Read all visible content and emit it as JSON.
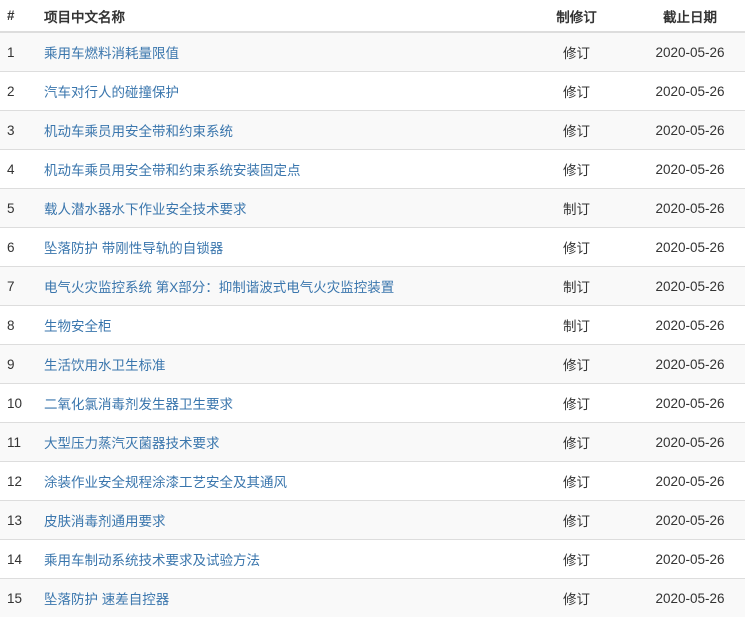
{
  "headers": {
    "num": "#",
    "name": "项目中文名称",
    "type": "制修订",
    "deadline": "截止日期"
  },
  "rows": [
    {
      "num": "1",
      "name": "乘用车燃料消耗量限值",
      "type": "修订",
      "deadline": "2020-05-26"
    },
    {
      "num": "2",
      "name": "汽车对行人的碰撞保护",
      "type": "修订",
      "deadline": "2020-05-26"
    },
    {
      "num": "3",
      "name": "机动车乘员用安全带和约束系统",
      "type": "修订",
      "deadline": "2020-05-26"
    },
    {
      "num": "4",
      "name": "机动车乘员用安全带和约束系统安装固定点",
      "type": "修订",
      "deadline": "2020-05-26"
    },
    {
      "num": "5",
      "name": "载人潜水器水下作业安全技术要求",
      "type": "制订",
      "deadline": "2020-05-26"
    },
    {
      "num": "6",
      "name": "坠落防护 带刚性导轨的自锁器",
      "type": "修订",
      "deadline": "2020-05-26"
    },
    {
      "num": "7",
      "name": "电气火灾监控系统 第X部分：抑制谐波式电气火灾监控装置",
      "type": "制订",
      "deadline": "2020-05-26"
    },
    {
      "num": "8",
      "name": "生物安全柜",
      "type": "制订",
      "deadline": "2020-05-26"
    },
    {
      "num": "9",
      "name": "生活饮用水卫生标准",
      "type": "修订",
      "deadline": "2020-05-26"
    },
    {
      "num": "10",
      "name": "二氧化氯消毒剂发生器卫生要求",
      "type": "修订",
      "deadline": "2020-05-26"
    },
    {
      "num": "11",
      "name": "大型压力蒸汽灭菌器技术要求",
      "type": "修订",
      "deadline": "2020-05-26"
    },
    {
      "num": "12",
      "name": "涂装作业安全规程涂漆工艺安全及其通风",
      "type": "修订",
      "deadline": "2020-05-26"
    },
    {
      "num": "13",
      "name": "皮肤消毒剂通用要求",
      "type": "修订",
      "deadline": "2020-05-26"
    },
    {
      "num": "14",
      "name": "乘用车制动系统技术要求及试验方法",
      "type": "修订",
      "deadline": "2020-05-26"
    },
    {
      "num": "15",
      "name": "坠落防护 速差自控器",
      "type": "修订",
      "deadline": "2020-05-26"
    }
  ]
}
